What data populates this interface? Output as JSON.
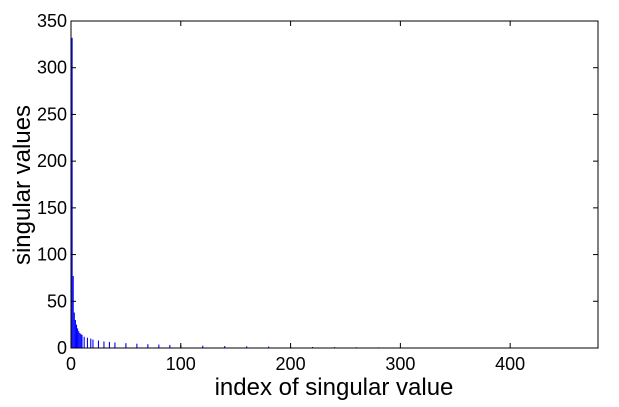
{
  "chart_data": {
    "type": "bar",
    "title": "",
    "xlabel": "index of singular value",
    "ylabel": "singular values",
    "xlim": [
      0,
      480
    ],
    "ylim": [
      0,
      350
    ],
    "xticks": [
      0,
      100,
      200,
      300,
      400
    ],
    "yticks": [
      0,
      50,
      100,
      150,
      200,
      250,
      300,
      350
    ],
    "grid": false,
    "bar_color": "#0000ff",
    "series": [
      {
        "x": [
          1,
          2,
          3,
          4,
          5,
          6,
          7,
          8,
          9,
          10,
          12,
          15,
          18,
          20,
          25,
          30,
          35,
          40,
          50,
          60,
          70,
          80,
          90,
          100,
          120,
          140,
          160,
          180,
          200,
          220,
          240,
          260,
          280,
          300,
          320,
          340,
          360,
          380,
          400,
          420,
          440,
          460,
          480
        ],
        "values": [
          332,
          77,
          38,
          30,
          25,
          21,
          18,
          16,
          15,
          14,
          12,
          11,
          10,
          9,
          8,
          7,
          6.5,
          6,
          5.2,
          4.6,
          4.1,
          3.7,
          3.3,
          3,
          2.5,
          2.1,
          1.8,
          1.5,
          1.3,
          1.1,
          0.95,
          0.8,
          0.7,
          0.6,
          0.5,
          0.42,
          0.36,
          0.3,
          0.25,
          0.2,
          0.15,
          0.1,
          0.05
        ]
      }
    ]
  }
}
